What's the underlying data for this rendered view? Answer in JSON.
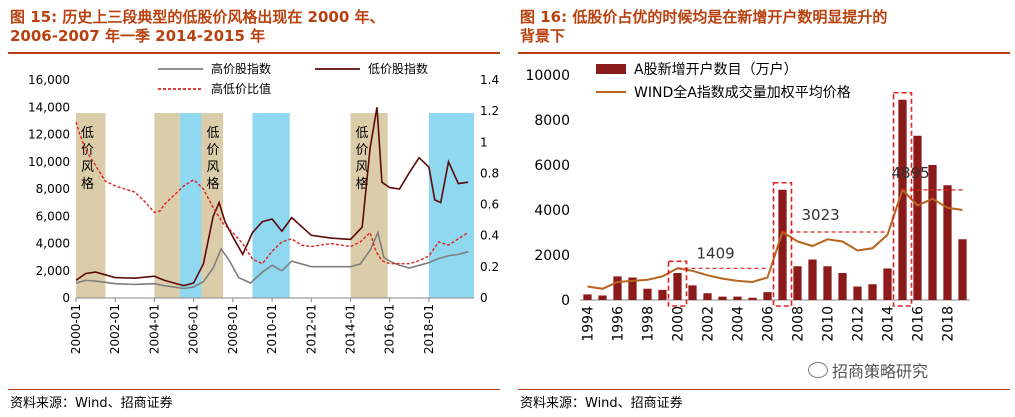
{
  "left_panel": {
    "title_line1": "图 15: 历史上三段典型的低股价风格出现在 2000 年、",
    "title_line2": "2006-2007 年一季 2014-2015 年",
    "source": "资料来源：Wind、招商证券"
  },
  "right_panel": {
    "title_line1": "图 16: 低股价占优的时候均是在新增开户数明显提升的",
    "title_line2": "背景下",
    "source": "资料来源：Wind、招商证券"
  },
  "watermark": "招商策略研究",
  "colors": {
    "title": "#b8410f",
    "high_price_line": "#7f7f7f",
    "low_price_line": "#5c0a0a",
    "ratio_line": "#e0201f",
    "shade_tan": "#dccdaa",
    "shade_blue": "#8fd8f0",
    "bar": "#8b1a1a",
    "wind_line": "#b8641f",
    "highlight_box": "#e0201f"
  },
  "chart_data": [
    {
      "type": "line",
      "legend": [
        "高价股指数",
        "低价股指数",
        "高低价比值"
      ],
      "xticks": [
        "2000-01",
        "2002-01",
        "2004-01",
        "2006-01",
        "2008-01",
        "2010-01",
        "2012-01",
        "2014-01",
        "2016-01",
        "2018-01"
      ],
      "y_left": {
        "ylim": [
          0,
          16000
        ],
        "ticks": [
          "0",
          "2,000",
          "4,000",
          "6,000",
          "8,000",
          "10,000",
          "12,000",
          "14,000",
          "16,000"
        ]
      },
      "y_right": {
        "ylim": [
          0,
          1.4
        ],
        "ticks": [
          "0",
          "0.2",
          "0.4",
          "0.6",
          "0.8",
          "1",
          "1.2",
          "1.4"
        ]
      },
      "shaded_periods": [
        {
          "start": 2000.0,
          "end": 2001.5,
          "kind": "tan",
          "label": "低价风格"
        },
        {
          "start": 2004.0,
          "end": 2005.3,
          "kind": "tan",
          "label": ""
        },
        {
          "start": 2005.3,
          "end": 2006.4,
          "kind": "blue",
          "label": ""
        },
        {
          "start": 2006.4,
          "end": 2007.5,
          "kind": "tan",
          "label": "低价风格"
        },
        {
          "start": 2009.0,
          "end": 2010.9,
          "kind": "blue",
          "label": ""
        },
        {
          "start": 2014.0,
          "end": 2015.9,
          "kind": "tan",
          "label": "低价风格"
        },
        {
          "start": 2018.0,
          "end": 2020.3,
          "kind": "blue",
          "label": ""
        }
      ],
      "series": [
        {
          "name": "高价股指数",
          "axis": "left",
          "x": [
            2000,
            2000.5,
            2001,
            2001.5,
            2002,
            2003,
            2004,
            2004.5,
            2005,
            2005.5,
            2006,
            2006.5,
            2007,
            2007.4,
            2007.8,
            2008.3,
            2008.9,
            2009.5,
            2010,
            2010.5,
            2011,
            2012,
            2013,
            2014,
            2014.5,
            2015.0,
            2015.4,
            2015.7,
            2016,
            2016.5,
            2017,
            2017.5,
            2018,
            2018.5,
            2019,
            2019.5,
            2020
          ],
          "values": [
            1100,
            1300,
            1250,
            1150,
            1050,
            1000,
            1050,
            900,
            800,
            700,
            800,
            1200,
            2200,
            3600,
            2800,
            1500,
            1100,
            1900,
            2400,
            2000,
            2700,
            2300,
            2300,
            2300,
            2500,
            3500,
            4800,
            3000,
            2700,
            2400,
            2200,
            2400,
            2600,
            2900,
            3100,
            3200,
            3400
          ]
        },
        {
          "name": "低价股指数",
          "axis": "left",
          "x": [
            2000,
            2000.5,
            2001,
            2001.5,
            2002,
            2003,
            2004,
            2004.5,
            2005,
            2005.5,
            2006,
            2006.5,
            2007,
            2007.3,
            2007.6,
            2008,
            2008.5,
            2009,
            2009.5,
            2010,
            2010.5,
            2011,
            2012,
            2013,
            2014,
            2014.6,
            2015.0,
            2015.35,
            2015.6,
            2016,
            2016.5,
            2017,
            2017.5,
            2018,
            2018.3,
            2018.6,
            2019,
            2019.5,
            2020
          ],
          "values": [
            1300,
            1800,
            1900,
            1700,
            1500,
            1450,
            1600,
            1300,
            1100,
            900,
            1100,
            2500,
            6000,
            7000,
            5600,
            4500,
            3200,
            4800,
            5600,
            5800,
            4900,
            5900,
            4600,
            4400,
            4300,
            5200,
            11000,
            14000,
            8500,
            8100,
            8000,
            9200,
            10300,
            9600,
            7200,
            7000,
            10000,
            8400,
            8500
          ]
        },
        {
          "name": "高低价比值",
          "axis": "right",
          "x": [
            2000,
            2000.2,
            2000.5,
            2001,
            2001.5,
            2002,
            2002.5,
            2003,
            2003.5,
            2004,
            2004.3,
            2004.5,
            2005,
            2005.5,
            2006,
            2006.5,
            2007,
            2007.5,
            2008,
            2008.5,
            2009,
            2009.5,
            2010,
            2010.5,
            2011,
            2011.5,
            2012,
            2013,
            2014,
            2014.5,
            2015.0,
            2015.3,
            2015.6,
            2016,
            2017,
            2017.5,
            2018,
            2018.5,
            2019,
            2019.5,
            2020
          ],
          "values": [
            1.13,
            1.05,
            0.95,
            0.85,
            0.75,
            0.72,
            0.7,
            0.68,
            0.62,
            0.55,
            0.56,
            0.6,
            0.66,
            0.72,
            0.76,
            0.7,
            0.58,
            0.48,
            0.42,
            0.35,
            0.25,
            0.22,
            0.3,
            0.36,
            0.38,
            0.34,
            0.33,
            0.35,
            0.33,
            0.36,
            0.42,
            0.3,
            0.24,
            0.22,
            0.22,
            0.24,
            0.27,
            0.36,
            0.34,
            0.38,
            0.42
          ]
        }
      ]
    },
    {
      "type": "bar",
      "legend": [
        "A股新增开户数目（万户）",
        "WIND全A指数成交量加权平均价格"
      ],
      "xticks": [
        "1994",
        "1996",
        "1998",
        "2000",
        "2002",
        "2004",
        "2006",
        "2008",
        "2010",
        "2012",
        "2014",
        "2016",
        "2018"
      ],
      "ylim": [
        0,
        10000
      ],
      "yticks": [
        "0",
        "2000",
        "4000",
        "6000",
        "8000",
        "10000"
      ],
      "categories": [
        "1994",
        "1995",
        "1996",
        "1997",
        "1998",
        "1999",
        "2000",
        "2001",
        "2002",
        "2003",
        "2004",
        "2005",
        "2006",
        "2007",
        "2008",
        "2009",
        "2010",
        "2011",
        "2012",
        "2013",
        "2014",
        "2015",
        "2016",
        "2017",
        "2018",
        "2019"
      ],
      "series": [
        {
          "name": "A股新增开户数目（万户）",
          "kind": "bar",
          "values": [
            250,
            200,
            1050,
            1000,
            500,
            450,
            1200,
            650,
            300,
            150,
            150,
            100,
            350,
            4900,
            1500,
            1800,
            1500,
            1200,
            600,
            700,
            1400,
            8900,
            7300,
            6000,
            5100,
            2700
          ]
        },
        {
          "name": "WIND全A指数成交量加权平均价格",
          "kind": "line",
          "values": [
            600,
            500,
            800,
            850,
            900,
            1050,
            1409,
            1300,
            1100,
            950,
            850,
            800,
            1000,
            3023,
            2600,
            2400,
            2700,
            2600,
            2200,
            2300,
            2900,
            4895,
            4200,
            4500,
            4100,
            4000
          ]
        }
      ],
      "annotations": [
        "1409",
        "3023",
        "4895"
      ],
      "highlight_years": [
        {
          "start": "2000",
          "end": "2000",
          "level": 1409,
          "line_to": "2006"
        },
        {
          "start": "2007",
          "end": "2007",
          "level": 3023,
          "line_to": "2014"
        },
        {
          "start": "2015",
          "end": "2015",
          "level": 4895,
          "line_to": "2019"
        }
      ]
    }
  ]
}
